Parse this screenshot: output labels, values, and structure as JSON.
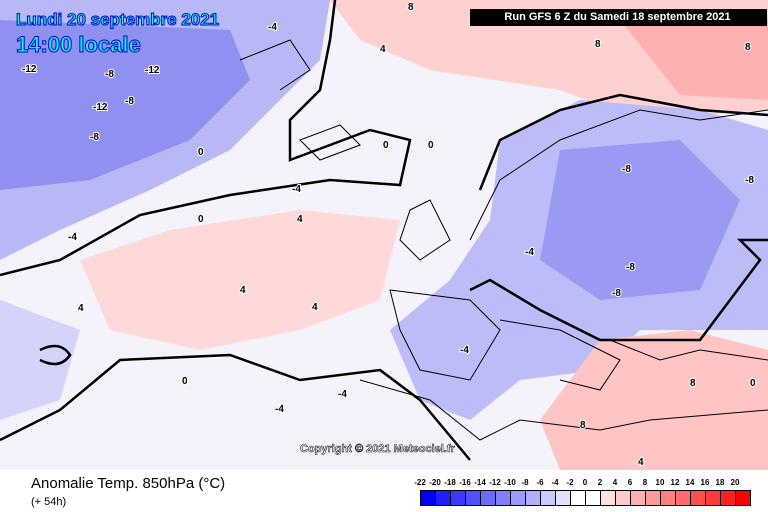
{
  "header": {
    "date": "Lundi 20 septembre 2021",
    "time": "14:00 locale",
    "run": "Run GFS 6 Z du Samedi 18 septembre 2021"
  },
  "footer": {
    "variable": "Anomalie Temp. 850hPa (°C)",
    "lead": "(+ 54h)",
    "copyright": "Copyright © 2021 Meteociel.fr"
  },
  "legend": {
    "labels": [
      "-22",
      "-20",
      "-18",
      "-16",
      "-14",
      "-12",
      "-10",
      "-8",
      "-6",
      "-4",
      "-2",
      "0",
      "2",
      "4",
      "6",
      "8",
      "10",
      "12",
      "14",
      "16",
      "18",
      "20"
    ],
    "colors": [
      "#0000ff",
      "#2020ff",
      "#3a3aff",
      "#5050ff",
      "#6a6aff",
      "#8080ff",
      "#9a9aff",
      "#b0b0ff",
      "#cacaff",
      "#e0e0ff",
      "#ffffff",
      "#ffffff",
      "#ffe0e0",
      "#ffcaca",
      "#ffb0b0",
      "#ff9a9a",
      "#ff8080",
      "#ff6a6a",
      "#ff5050",
      "#ff3a3a",
      "#ff2020",
      "#ff0000"
    ]
  },
  "contour_labels": [
    "-12",
    "-8",
    "-12",
    "-12",
    "-8",
    "-8",
    "-4",
    "0",
    "-4",
    "0",
    "8",
    "4",
    "8",
    "8",
    "0",
    "-4",
    "4",
    "0",
    "-4",
    "-8",
    "-8",
    "-8",
    "-4",
    "-8",
    "4",
    "4",
    "8",
    "0",
    "-4",
    "-4",
    "4",
    "8",
    "0",
    "4"
  ]
}
